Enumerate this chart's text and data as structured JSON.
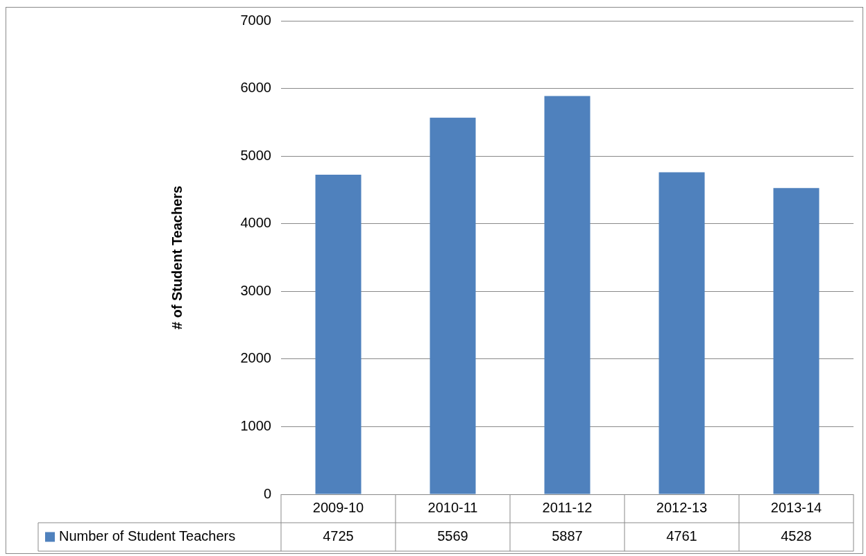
{
  "chart_data": {
    "type": "bar",
    "ylabel": "# of Student Teachers",
    "categories": [
      "2009-10",
      "2010-11",
      "2011-12",
      "2012-13",
      "2013-14"
    ],
    "series": [
      {
        "name": "Number of Student Teachers",
        "color": "#4f81bd",
        "values": [
          4725,
          5569,
          5887,
          4761,
          4528
        ]
      }
    ],
    "ylim": [
      0,
      7000
    ],
    "yticks": [
      0,
      1000,
      2000,
      3000,
      4000,
      5000,
      6000,
      7000
    ],
    "grid": "y",
    "data_labels": true
  }
}
